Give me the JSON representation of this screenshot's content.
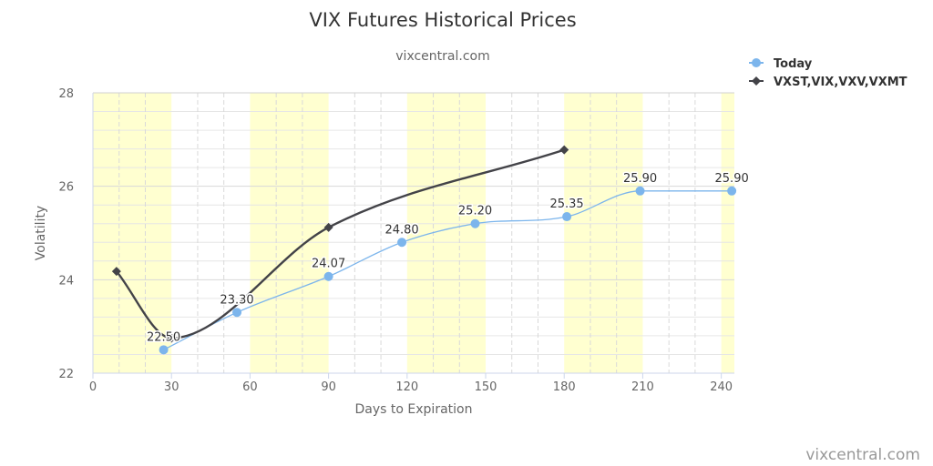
{
  "chart_data": {
    "type": "line",
    "title": "VIX Futures Historical Prices",
    "subtitle": "vixcentral.com",
    "xlabel": "Days to Expiration",
    "ylabel": "Volatility",
    "xlim": [
      0,
      245
    ],
    "ylim": [
      22,
      28
    ],
    "x_ticks": [
      "0",
      "30",
      "60",
      "90",
      "120",
      "150",
      "180",
      "210",
      "240"
    ],
    "y_ticks": [
      "22",
      "24",
      "26",
      "28"
    ],
    "grid": true,
    "legend_position": "top-right",
    "series": [
      {
        "name": "Today",
        "color": "#7cb5ec",
        "marker": "circle",
        "x": [
          27,
          55,
          90,
          118,
          146,
          181,
          209,
          244
        ],
        "values": [
          22.5,
          23.3,
          24.07,
          24.8,
          25.2,
          25.35,
          25.9,
          25.9
        ],
        "labels": [
          "22.50",
          "23.30",
          "24.07",
          "24.80",
          "25.20",
          "25.35",
          "25.90",
          "25.90"
        ]
      },
      {
        "name": "VXST,VIX,VXV,VXMT",
        "color": "#434348",
        "marker": "diamond",
        "x": [
          9,
          30,
          90,
          180
        ],
        "values": [
          24.18,
          22.75,
          25.12,
          26.78
        ]
      }
    ],
    "colors": {
      "band": "#ffffd0",
      "grid": "#e0e0e0",
      "axis": "#ccd6eb"
    }
  },
  "credit": "vixcentral.com"
}
